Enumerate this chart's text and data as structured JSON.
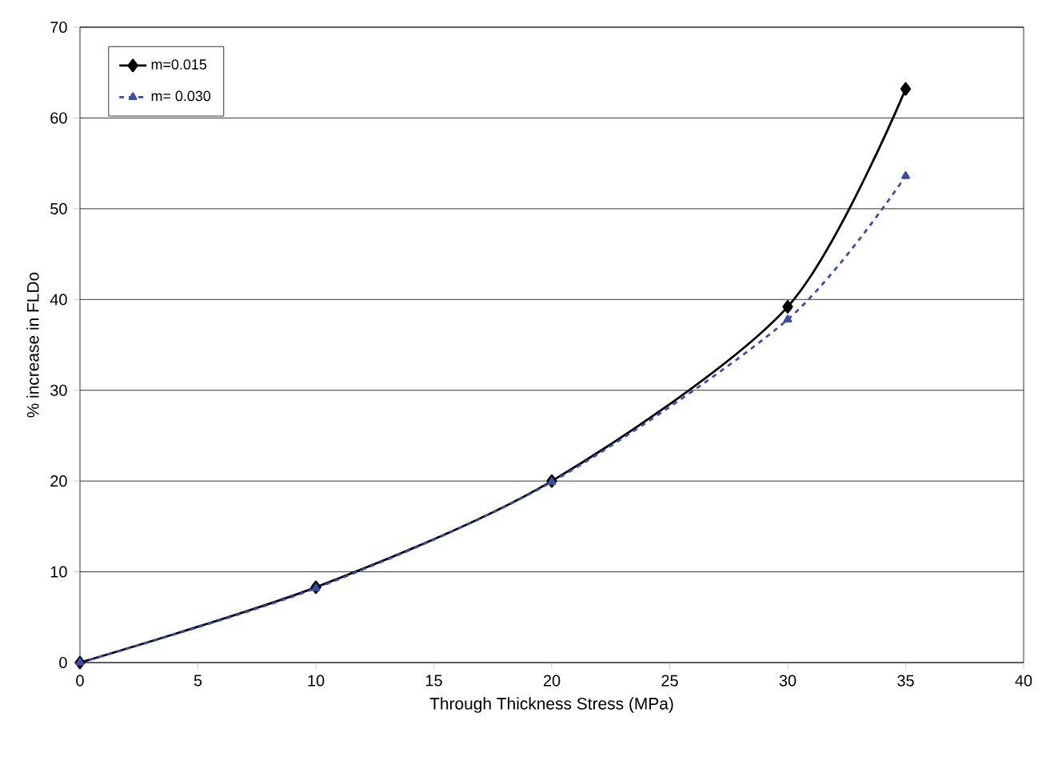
{
  "chart_data": {
    "type": "line",
    "xlabel": "Through Thickness Stress (MPa)",
    "ylabel": "% increase in FLDo",
    "x": [
      0,
      10,
      20,
      30,
      35
    ],
    "series": [
      {
        "name": "m=0.015",
        "color": "#000000",
        "values": [
          0,
          8.3,
          20,
          39.2,
          63.2
        ],
        "marker": "diamond",
        "line_style": "solid"
      },
      {
        "name": "m= 0.030",
        "color": "#3a4fa8",
        "values": [
          0,
          8.2,
          19.9,
          37.8,
          53.6
        ],
        "marker": "triangle",
        "line_style": "dashed"
      }
    ],
    "xlim": [
      0,
      40
    ],
    "ylim": [
      0,
      70
    ],
    "xticks": [
      0,
      5,
      10,
      15,
      20,
      25,
      30,
      35,
      40
    ],
    "yticks": [
      0,
      10,
      20,
      30,
      40,
      50,
      60,
      70
    ],
    "grid": "y",
    "legend": "top left"
  }
}
